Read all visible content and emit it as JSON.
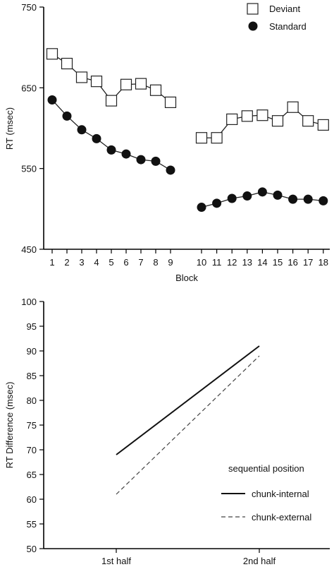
{
  "chart_data": [
    {
      "type": "line",
      "xlabel": "Block",
      "ylabel": "RT (msec)",
      "ylim": [
        450,
        750
      ],
      "yticks": [
        450,
        550,
        650,
        750
      ],
      "x": [
        1,
        2,
        3,
        4,
        5,
        6,
        7,
        8,
        9,
        10,
        11,
        12,
        13,
        14,
        15,
        16,
        17,
        18
      ],
      "legend": "top-right",
      "segments": [
        [
          1,
          9
        ],
        [
          10,
          18
        ]
      ],
      "series": [
        {
          "name": "Deviant",
          "marker": "open-square",
          "values": [
            692,
            680,
            663,
            658,
            634,
            654,
            655,
            647,
            632,
            588,
            588,
            611,
            615,
            616,
            609,
            626,
            609,
            604
          ]
        },
        {
          "name": "Standard",
          "marker": "filled-circle",
          "values": [
            635,
            615,
            598,
            587,
            573,
            568,
            561,
            559,
            548,
            502,
            507,
            513,
            516,
            521,
            517,
            512,
            512,
            510
          ]
        }
      ]
    },
    {
      "type": "line",
      "xlabel": "",
      "ylabel": "RT Difference (msec)",
      "ylim": [
        50,
        100
      ],
      "yticks": [
        50,
        55,
        60,
        65,
        70,
        75,
        80,
        85,
        90,
        95,
        100
      ],
      "categories": [
        "1st half",
        "2nd half"
      ],
      "legend_title": "sequential position",
      "legend": "bottom-right",
      "series": [
        {
          "name": "chunk-internal",
          "style": "solid",
          "values": [
            69,
            91
          ]
        },
        {
          "name": "chunk-external",
          "style": "dashed",
          "values": [
            61,
            89
          ]
        }
      ]
    }
  ]
}
